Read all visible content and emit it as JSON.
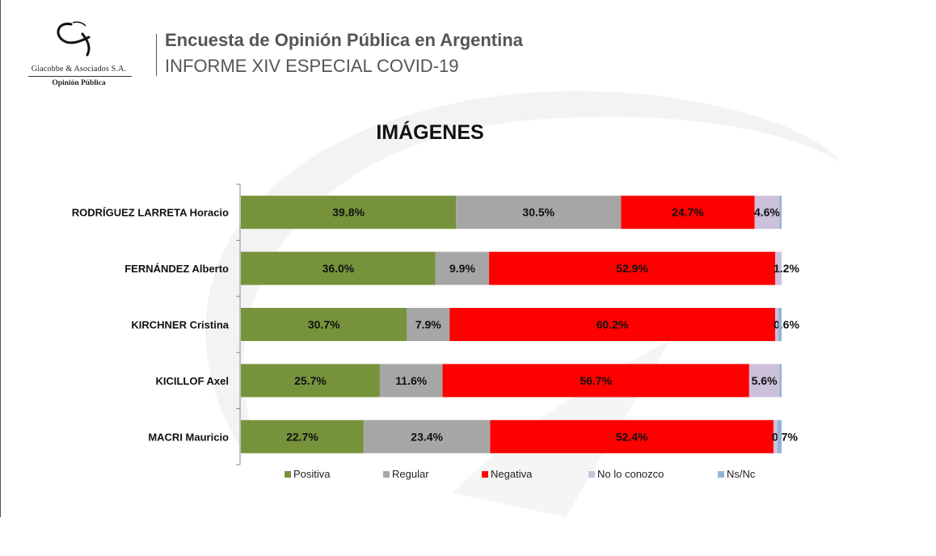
{
  "header": {
    "title": "Encuesta de Opinión Pública en Argentina",
    "subtitle": "INFORME XIV ESPECIAL COVID-19"
  },
  "logo": {
    "company": "Giacobbe & Asociados S.A.",
    "tagline": "Opinión Pública"
  },
  "chart_data": {
    "type": "bar",
    "orientation": "horizontal",
    "stacked": true,
    "title": "IMÁGENES",
    "xlabel": "",
    "ylabel": "",
    "xlim": [
      0,
      100
    ],
    "grid": false,
    "legend_position": "bottom",
    "categories": [
      "RODRÍGUEZ LARRETA Horacio",
      "FERNÁNDEZ Alberto",
      "KIRCHNER Cristina",
      "KICILLOF Axel",
      "MACRI Mauricio"
    ],
    "series": [
      {
        "name": "Positiva",
        "color": "#76933c",
        "values": [
          39.8,
          36.0,
          30.7,
          25.7,
          22.7
        ],
        "labels": [
          "39.8%",
          "36.0%",
          "30.7%",
          "25.7%",
          "22.7%"
        ]
      },
      {
        "name": "Regular",
        "color": "#a6a6a6",
        "values": [
          30.5,
          9.9,
          7.9,
          11.6,
          23.4
        ],
        "labels": [
          "30.5%",
          "9.9%",
          "7.9%",
          "11.6%",
          "23.4%"
        ]
      },
      {
        "name": "Negativa",
        "color": "#ff0000",
        "values": [
          24.7,
          52.9,
          60.2,
          56.7,
          52.4
        ],
        "labels": [
          "24.7%",
          "52.9%",
          "60.2%",
          "56.7%",
          "52.4%"
        ]
      },
      {
        "name": "No lo conozco",
        "color": "#ccc0da",
        "values": [
          4.6,
          1.2,
          0.6,
          5.6,
          0.7
        ],
        "labels": [
          "4.6%",
          "1.2%",
          "0.6%",
          "5.6%",
          "0.7%"
        ]
      },
      {
        "name": "Ns/Nc",
        "color": "#95b3d7",
        "values": [
          0.4,
          0.0,
          0.6,
          0.4,
          0.8
        ],
        "labels": null
      }
    ]
  }
}
